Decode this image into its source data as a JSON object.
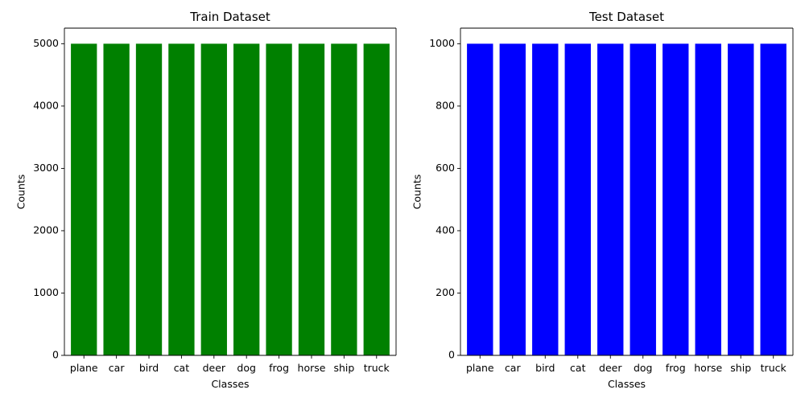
{
  "chart_data": [
    {
      "type": "bar",
      "title": "Train Dataset",
      "xlabel": "Classes",
      "ylabel": "Counts",
      "categories": [
        "plane",
        "car",
        "bird",
        "cat",
        "deer",
        "dog",
        "frog",
        "horse",
        "ship",
        "truck"
      ],
      "values": [
        5000,
        5000,
        5000,
        5000,
        5000,
        5000,
        5000,
        5000,
        5000,
        5000
      ],
      "ylim": [
        0,
        5250
      ],
      "yticks": [
        0,
        1000,
        2000,
        3000,
        4000,
        5000
      ],
      "color": "#008000",
      "grid": false,
      "legend": false
    },
    {
      "type": "bar",
      "title": "Test Dataset",
      "xlabel": "Classes",
      "ylabel": "Counts",
      "categories": [
        "plane",
        "car",
        "bird",
        "cat",
        "deer",
        "dog",
        "frog",
        "horse",
        "ship",
        "truck"
      ],
      "values": [
        1000,
        1000,
        1000,
        1000,
        1000,
        1000,
        1000,
        1000,
        1000,
        1000
      ],
      "ylim": [
        0,
        1050
      ],
      "yticks": [
        0,
        200,
        400,
        600,
        800,
        1000
      ],
      "color": "#0000ff",
      "grid": false,
      "legend": false
    }
  ]
}
